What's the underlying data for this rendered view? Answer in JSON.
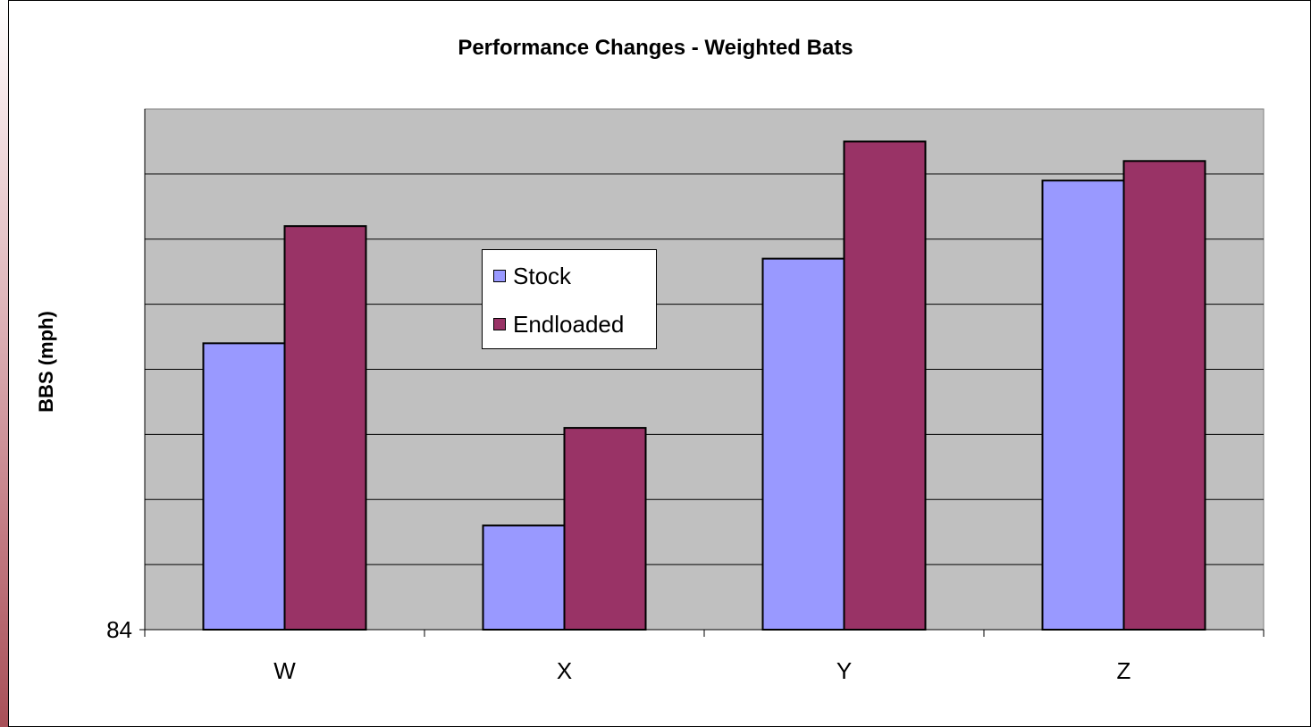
{
  "chart_data": {
    "type": "bar",
    "title": "Performance Changes - Weighted Bats",
    "xlabel": "",
    "ylabel": "BBS (mph)",
    "categories": [
      "W",
      "X",
      "Y",
      "Z"
    ],
    "ytick_labels": [
      "84"
    ],
    "ylim": [
      84,
      92
    ],
    "grid": true,
    "legend_position": "center",
    "series": [
      {
        "name": "Stock",
        "color": "#9999ff",
        "values": [
          88.4,
          85.6,
          89.7,
          90.9
        ]
      },
      {
        "name": "Endloaded",
        "color": "#993366",
        "values": [
          90.2,
          87.1,
          91.5,
          91.2
        ]
      }
    ],
    "plot_background": "#c0c0c0"
  }
}
